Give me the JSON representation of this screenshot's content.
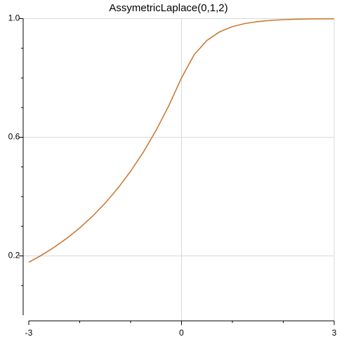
{
  "chart_data": {
    "type": "line",
    "title": "AssymetricLaplace(0,1,2)",
    "x": [
      -3,
      -2.75,
      -2.5,
      -2.25,
      -2,
      -1.75,
      -1.5,
      -1.25,
      -1,
      -0.75,
      -0.5,
      -0.25,
      0,
      0.25,
      0.5,
      0.75,
      1,
      1.25,
      1.5,
      1.75,
      2,
      2.25,
      2.5,
      2.75,
      3
    ],
    "series": [
      {
        "color": "#c8732a",
        "values": [
          0.1785,
          0.2022,
          0.2292,
          0.2598,
          0.2943,
          0.3335,
          0.3779,
          0.4282,
          0.4852,
          0.5498,
          0.623,
          0.706,
          0.8,
          0.8787,
          0.9264,
          0.9554,
          0.9729,
          0.9836,
          0.99,
          0.994,
          0.9963,
          0.9978,
          0.9987,
          0.9992,
          0.9995
        ]
      }
    ],
    "xlim": [
      -3,
      3
    ],
    "xticks": [
      -3,
      0,
      3
    ],
    "xminor_ticks": [
      -2,
      -1,
      1,
      2
    ],
    "ylim": [
      0,
      1
    ],
    "yticks": [
      0.2,
      0.6,
      {
        "value": 1,
        "label": "1.0"
      }
    ],
    "yminor_ticks": [
      0.1,
      0.3,
      0.4,
      0.5,
      0.7,
      0.8,
      0.9
    ],
    "grid": true
  }
}
